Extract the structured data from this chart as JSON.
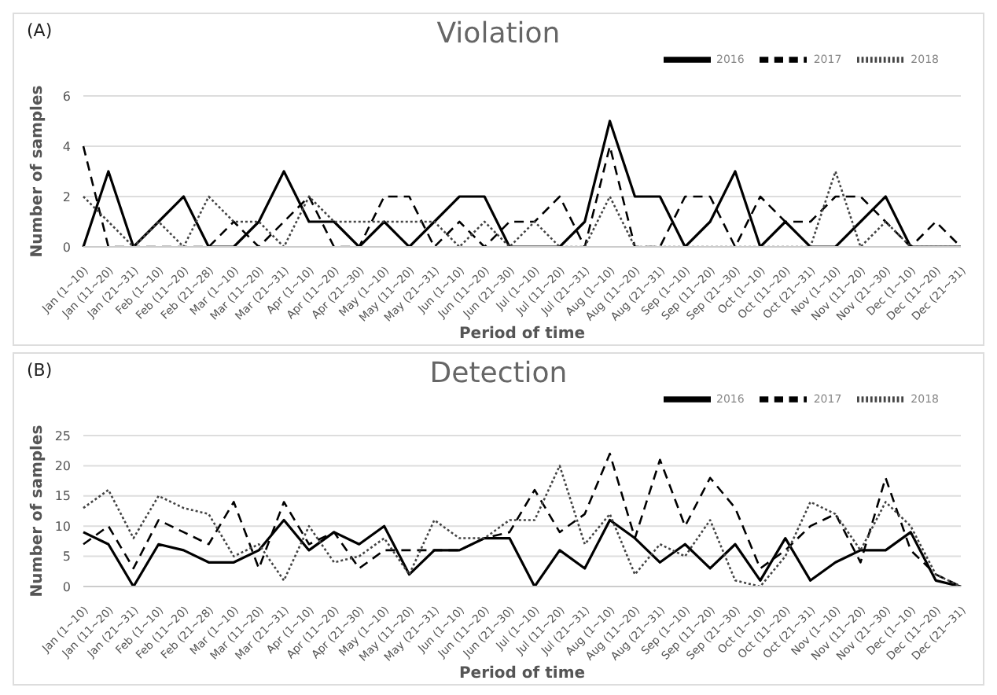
{
  "chart_data": [
    {
      "type": "line",
      "title": "Violation",
      "annotations": [
        "(A)"
      ],
      "xlabel": "Period of time",
      "ylabel": "Number of samples",
      "categories": [
        "Jan (1~10)",
        "Jan (11~20)",
        "Jan (21~31)",
        "Feb (1~10)",
        "Feb (11~20)",
        "Feb (21~28)",
        "Mar (1~10)",
        "Mar (11~20)",
        "Mar (21~31)",
        "Apr (1~10)",
        "Apr (11~20)",
        "Apr (21~30)",
        "May (1~10)",
        "May (11~20)",
        "May (21~31)",
        "Jun (1~10)",
        "Jun (11~20)",
        "Jun (21~30)",
        "Jul (1~10)",
        "Jul (11~20)",
        "Jul (21~31)",
        "Aug (1~10)",
        "Aug (11~20)",
        "Aug (21~31)",
        "Sep (1~10)",
        "Sep (11~20)",
        "Sep (21~30)",
        "Oct (1~10)",
        "Oct (11~20)",
        "Oct (21~31)",
        "Nov (1~10)",
        "Nov (11~20)",
        "Nov (21~30)",
        "Dec (1~10)",
        "Dec (11~20)",
        "Dec (21~31)"
      ],
      "series": [
        {
          "name": "2016",
          "color": "#000000",
          "line_style": "solid",
          "values": [
            0,
            3,
            0,
            1,
            2,
            0,
            0,
            1,
            3,
            1,
            1,
            0,
            1,
            0,
            1,
            2,
            2,
            0,
            0,
            0,
            1,
            5,
            2,
            2,
            0,
            1,
            3,
            0,
            1,
            0,
            0,
            1,
            2,
            0,
            0,
            0
          ]
        },
        {
          "name": "2017",
          "color": "#000000",
          "line_style": "dashed",
          "values": [
            4,
            0,
            0,
            0,
            0,
            0,
            1,
            0,
            1,
            2,
            0,
            0,
            2,
            2,
            0,
            1,
            0,
            1,
            1,
            2,
            0,
            4,
            0,
            0,
            2,
            2,
            0,
            2,
            1,
            1,
            2,
            2,
            1,
            0,
            1,
            0
          ]
        },
        {
          "name": "2018",
          "color": "#444444",
          "line_style": "dotted",
          "values": [
            2,
            1,
            0,
            1,
            0,
            2,
            1,
            1,
            0,
            2,
            1,
            1,
            1,
            1,
            1,
            0,
            1,
            0,
            1,
            0,
            0,
            2,
            0,
            0,
            0,
            0,
            0,
            0,
            0,
            0,
            3,
            0,
            1,
            0,
            0,
            0
          ]
        }
      ],
      "ylim": [
        0,
        6
      ],
      "yticks": [
        0,
        2,
        4,
        6
      ],
      "grid": "y",
      "legend": "top right",
      "marker": "none"
    },
    {
      "type": "line",
      "title": "Detection",
      "annotations": [
        "(B)"
      ],
      "xlabel": "Period of time",
      "ylabel": "Number of samples",
      "categories": [
        "Jan (1~10)",
        "Jan (11~20)",
        "Jan (21~31)",
        "Feb (1~10)",
        "Feb (11~20)",
        "Feb (21~28)",
        "Mar (1~10)",
        "Mar (11~20)",
        "Mar (21~31)",
        "Apr (1~10)",
        "Apr (11~20)",
        "Apr (21~30)",
        "May (1~10)",
        "May (11~20)",
        "May (21~31)",
        "Jun (1~10)",
        "Jun (11~20)",
        "Jun (21~30)",
        "Jul (1~10)",
        "Jul (11~20)",
        "Jul (21~31)",
        "Aug (1~10)",
        "Aug (11~20)",
        "Aug (21~31)",
        "Sep (1~10)",
        "Sep (11~20)",
        "Sep (21~30)",
        "Oct (1~10)",
        "Oct (11~20)",
        "Oct (21~31)",
        "Nov (1~10)",
        "Nov (11~20)",
        "Nov (21~30)",
        "Dec (1~10)",
        "Dec (11~20)",
        "Dec (21~31)"
      ],
      "series": [
        {
          "name": "2016",
          "color": "#000000",
          "line_style": "solid",
          "values": [
            9,
            7,
            0,
            7,
            6,
            4,
            4,
            6,
            11,
            6,
            9,
            7,
            10,
            2,
            6,
            6,
            8,
            8,
            0,
            6,
            3,
            11,
            8,
            4,
            7,
            3,
            7,
            1,
            8,
            1,
            4,
            6,
            6,
            9,
            1,
            0
          ]
        },
        {
          "name": "2017",
          "color": "#000000",
          "line_style": "dashed",
          "values": [
            7,
            10,
            3,
            11,
            9,
            7,
            14,
            3,
            14,
            7,
            9,
            3,
            6,
            6,
            6,
            6,
            8,
            9,
            16,
            9,
            12,
            22,
            8,
            21,
            10,
            18,
            13,
            3,
            6,
            10,
            12,
            4,
            18,
            6,
            2,
            0
          ]
        },
        {
          "name": "2018",
          "color": "#444444",
          "line_style": "dotted",
          "values": [
            13,
            16,
            8,
            15,
            13,
            12,
            5,
            7,
            1,
            10,
            4,
            5,
            8,
            2,
            11,
            8,
            8,
            11,
            11,
            20,
            7,
            12,
            2,
            7,
            5,
            11,
            1,
            0,
            5,
            14,
            12,
            6,
            14,
            10,
            2,
            0
          ]
        }
      ],
      "ylim": [
        0,
        25
      ],
      "yticks": [
        0,
        5,
        10,
        15,
        20,
        25
      ],
      "grid": "y",
      "legend": "top right",
      "marker": "none"
    }
  ]
}
